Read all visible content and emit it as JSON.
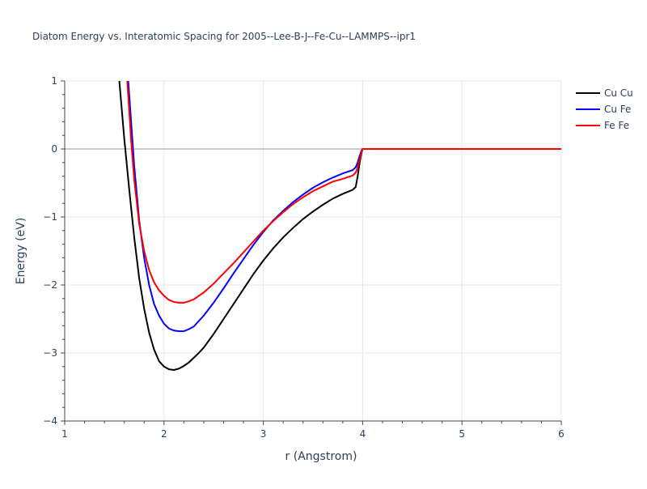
{
  "chart_data": {
    "type": "line",
    "title": "Diatom Energy vs. Interatomic Spacing for 2005--Lee-B-J--Fe-Cu--LAMMPS--ipr1",
    "xlabel": "r (Angstrom)",
    "ylabel": "Energy (eV)",
    "xlim": [
      1,
      6
    ],
    "ylim": [
      -4,
      1
    ],
    "xticks": [
      1,
      2,
      3,
      4,
      5,
      6
    ],
    "yticks": [
      1,
      0,
      -1,
      -2,
      -3,
      -4
    ],
    "ytick_labels": [
      "1",
      "0",
      "−1",
      "−2",
      "−3",
      "−4"
    ],
    "grid": true,
    "legend_position": "top-right",
    "series": [
      {
        "name": "Cu Cu",
        "color": "#000000",
        "x": [
          1.55,
          1.6,
          1.65,
          1.7,
          1.75,
          1.8,
          1.85,
          1.9,
          1.95,
          2.0,
          2.05,
          2.1,
          2.15,
          2.2,
          2.25,
          2.3,
          2.35,
          2.4,
          2.5,
          2.6,
          2.7,
          2.8,
          2.9,
          3.0,
          3.1,
          3.2,
          3.3,
          3.4,
          3.5,
          3.6,
          3.7,
          3.8,
          3.9,
          3.93,
          3.95,
          3.97,
          3.99,
          4.0,
          4.5,
          5.0,
          5.5,
          6.0
        ],
        "y": [
          1.0,
          0.15,
          -0.6,
          -1.3,
          -1.9,
          -2.35,
          -2.7,
          -2.95,
          -3.12,
          -3.2,
          -3.24,
          -3.25,
          -3.23,
          -3.19,
          -3.14,
          -3.07,
          -3.0,
          -2.92,
          -2.72,
          -2.5,
          -2.28,
          -2.06,
          -1.84,
          -1.64,
          -1.46,
          -1.3,
          -1.16,
          -1.03,
          -0.92,
          -0.82,
          -0.73,
          -0.66,
          -0.6,
          -0.56,
          -0.4,
          -0.2,
          -0.05,
          0.0,
          0.0,
          0.0,
          0.0,
          0.0
        ]
      },
      {
        "name": "Cu Fe",
        "color": "#0000ff",
        "x": [
          1.64,
          1.7,
          1.75,
          1.8,
          1.85,
          1.9,
          1.95,
          2.0,
          2.05,
          2.1,
          2.15,
          2.2,
          2.25,
          2.3,
          2.4,
          2.5,
          2.6,
          2.7,
          2.8,
          2.9,
          3.0,
          3.1,
          3.2,
          3.3,
          3.4,
          3.5,
          3.6,
          3.7,
          3.8,
          3.9,
          3.93,
          3.95,
          3.97,
          3.99,
          4.0,
          4.5,
          5.0,
          5.5,
          6.0
        ],
        "y": [
          1.0,
          -0.25,
          -1.05,
          -1.6,
          -2.0,
          -2.28,
          -2.45,
          -2.57,
          -2.64,
          -2.67,
          -2.68,
          -2.68,
          -2.65,
          -2.61,
          -2.45,
          -2.26,
          -2.05,
          -1.83,
          -1.62,
          -1.41,
          -1.22,
          -1.05,
          -0.91,
          -0.78,
          -0.67,
          -0.57,
          -0.49,
          -0.42,
          -0.36,
          -0.31,
          -0.27,
          -0.2,
          -0.1,
          -0.02,
          0.0,
          0.0,
          0.0,
          0.0,
          0.0
        ]
      },
      {
        "name": "Fe Fe",
        "color": "#ff0000",
        "x": [
          1.63,
          1.67,
          1.7,
          1.75,
          1.8,
          1.85,
          1.9,
          1.95,
          2.0,
          2.05,
          2.1,
          2.15,
          2.2,
          2.25,
          2.3,
          2.4,
          2.5,
          2.6,
          2.7,
          2.8,
          2.9,
          3.0,
          3.1,
          3.2,
          3.3,
          3.4,
          3.5,
          3.6,
          3.7,
          3.8,
          3.9,
          3.93,
          3.95,
          3.97,
          3.99,
          4.0,
          4.5,
          5.0,
          5.5,
          6.0
        ],
        "y": [
          1.0,
          0.1,
          -0.45,
          -1.1,
          -1.5,
          -1.78,
          -1.96,
          -2.08,
          -2.16,
          -2.22,
          -2.25,
          -2.26,
          -2.26,
          -2.24,
          -2.21,
          -2.11,
          -1.98,
          -1.83,
          -1.68,
          -1.52,
          -1.36,
          -1.2,
          -1.06,
          -0.93,
          -0.81,
          -0.71,
          -0.62,
          -0.55,
          -0.48,
          -0.44,
          -0.39,
          -0.35,
          -0.27,
          -0.15,
          -0.04,
          0.0,
          0.0,
          0.0,
          0.0,
          0.0
        ]
      }
    ]
  }
}
